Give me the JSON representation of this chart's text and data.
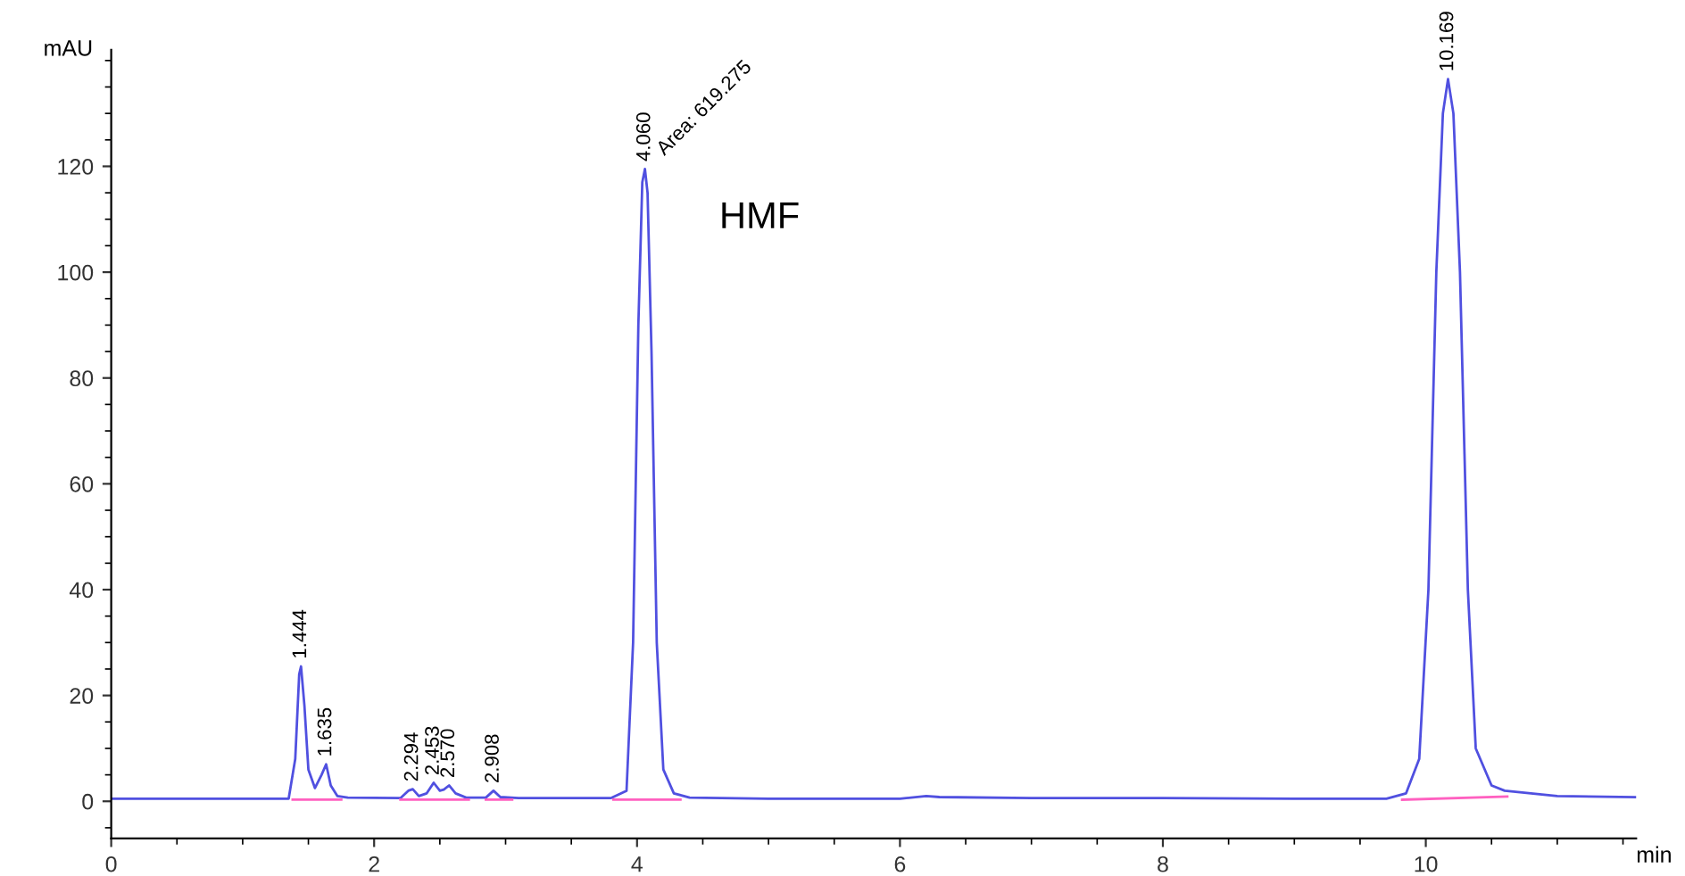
{
  "chart_data": {
    "type": "line",
    "xlabel": "min",
    "ylabel": "mAU",
    "series": [
      {
        "color": "#5050e0",
        "x": [
          0,
          1.0,
          1.35,
          1.4,
          1.43,
          1.444,
          1.47,
          1.5,
          1.55,
          1.6,
          1.635,
          1.67,
          1.72,
          1.8,
          2.2,
          2.26,
          2.294,
          2.34,
          2.4,
          2.453,
          2.5,
          2.53,
          2.57,
          2.62,
          2.7,
          2.85,
          2.908,
          2.96,
          3.1,
          3.8,
          3.92,
          3.97,
          4.01,
          4.04,
          4.06,
          4.08,
          4.11,
          4.15,
          4.2,
          4.28,
          4.4,
          5.0,
          6.0,
          6.2,
          6.3,
          7.0,
          8.0,
          9.0,
          9.7,
          9.85,
          9.95,
          10.02,
          10.08,
          10.13,
          10.169,
          10.21,
          10.26,
          10.32,
          10.38,
          10.5,
          10.6,
          11.0,
          11.6
        ],
        "values": [
          0.5,
          0.5,
          0.5,
          8,
          24,
          25.5,
          18,
          6,
          2.5,
          5,
          7,
          3,
          1,
          0.7,
          0.6,
          2,
          2.3,
          1,
          1.5,
          3.5,
          2,
          2.2,
          3,
          1.5,
          0.7,
          0.7,
          2,
          0.8,
          0.6,
          0.6,
          2,
          30,
          90,
          117,
          119.5,
          115,
          85,
          30,
          6,
          1.5,
          0.7,
          0.5,
          0.5,
          1.0,
          0.8,
          0.6,
          0.6,
          0.5,
          0.5,
          1.5,
          8,
          40,
          100,
          130,
          136.5,
          130,
          100,
          40,
          10,
          3,
          2,
          1,
          0.8
        ]
      },
      {
        "color": "#ff60c0",
        "x": [
          1.38,
          1.55,
          null,
          1.55,
          1.75,
          null,
          2.2,
          2.35,
          null,
          2.35,
          2.52,
          null,
          2.52,
          2.72,
          null,
          2.85,
          3.05,
          null,
          3.82,
          4.33,
          null,
          9.82,
          10.62
        ],
        "values": [
          0.3,
          0.3,
          null,
          0.3,
          0.3,
          null,
          0.3,
          0.3,
          null,
          0.3,
          0.3,
          null,
          0.3,
          0.3,
          null,
          0.3,
          0.3,
          null,
          0.3,
          0.3,
          null,
          0.3,
          0.9
        ]
      }
    ],
    "xlim": [
      0,
      11.6
    ],
    "ylim": [
      -7,
      142
    ],
    "xticks": [
      0,
      2,
      4,
      6,
      8,
      10
    ],
    "yticks": [
      0,
      20,
      40,
      60,
      80,
      100,
      120
    ],
    "grid": false,
    "marker": "none",
    "line_style": "solid",
    "annotations": [
      {
        "text": "1.444",
        "x": 1.444,
        "y": 25.5
      },
      {
        "text": "1.635",
        "x": 1.635,
        "y": 7
      },
      {
        "text": "2.294",
        "x": 2.294,
        "y": 2.3
      },
      {
        "text": "2.453",
        "x": 2.453,
        "y": 3.5
      },
      {
        "text": "2.570",
        "x": 2.57,
        "y": 3
      },
      {
        "text": "2.908",
        "x": 2.908,
        "y": 2
      },
      {
        "text": "4.060",
        "x": 4.06,
        "y": 119.5
      },
      {
        "text": "10.169",
        "x": 10.169,
        "y": 136.5
      },
      {
        "text": "Area: 619.275",
        "x": 4.06,
        "y": 119.5
      },
      {
        "text": "HMF",
        "x": 4.06,
        "y": 119.5
      }
    ]
  }
}
